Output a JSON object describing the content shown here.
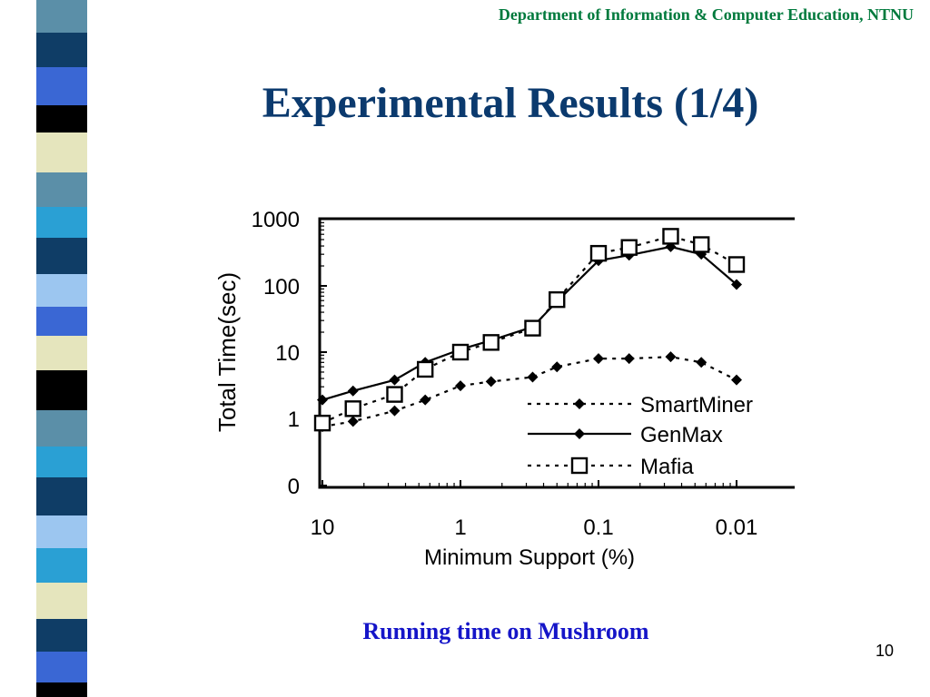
{
  "header": {
    "department": "Department of Information & Computer Education, NTNU"
  },
  "slide": {
    "title": "Experimental Results (1/4)",
    "caption": "Running time on Mushroom",
    "number": "10"
  },
  "chart_data": {
    "type": "line",
    "xlabel": "Minimum Support (%)",
    "ylabel": "Total Time(sec)",
    "x_scale": "log-reversed",
    "y_scale": "log",
    "xlim": [
      10,
      0.008
    ],
    "ylim_ticks": [
      "1000",
      "100",
      "10",
      "1",
      "0"
    ],
    "x_ticks": [
      "10",
      "1",
      "0.1",
      "0.01"
    ],
    "grid": false,
    "legend_position": "bottom-right",
    "series": [
      {
        "name": "SmartMiner",
        "style": "dotted-diamond",
        "x": [
          10,
          6,
          3,
          1.8,
          1,
          0.6,
          0.3,
          0.2,
          0.1,
          0.06,
          0.03,
          0.018,
          0.01
        ],
        "y": [
          0.75,
          0.9,
          1.3,
          1.9,
          3.1,
          3.6,
          4.2,
          6.0,
          8.0,
          8.0,
          8.5,
          7.0,
          3.8
        ]
      },
      {
        "name": "GenMax",
        "style": "solid-diamond",
        "x": [
          10,
          6,
          3,
          1.8,
          1,
          0.6,
          0.3,
          0.2,
          0.1,
          0.06,
          0.03,
          0.018,
          0.01
        ],
        "y": [
          1.9,
          2.6,
          3.8,
          7.0,
          11,
          15,
          24,
          58,
          240,
          290,
          390,
          300,
          105
        ]
      },
      {
        "name": "Mafia",
        "style": "dotted-square",
        "x": [
          10,
          6,
          3,
          1.8,
          1,
          0.6,
          0.3,
          0.2,
          0.1,
          0.06,
          0.03,
          0.018,
          0.01
        ],
        "y": [
          0.85,
          1.4,
          2.3,
          5.5,
          10,
          14,
          23,
          62,
          310,
          380,
          560,
          420,
          210
        ]
      }
    ]
  }
}
